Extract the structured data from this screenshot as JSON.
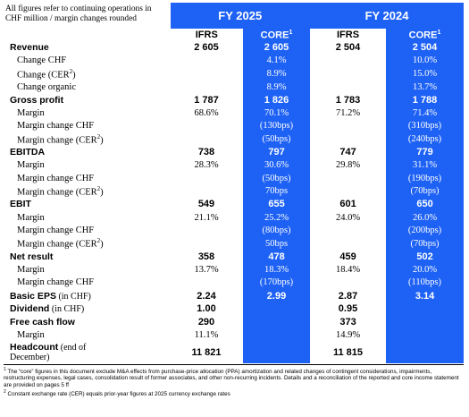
{
  "intro_note": "All figures refer to continuing operations in CHF million / margin changes rounded",
  "periods": {
    "p1": "FY 2025",
    "p2": "FY 2024"
  },
  "subheads": {
    "ifrs": "IFRS",
    "core": "CORE",
    "core_sup": "1"
  },
  "rows": [
    {
      "label": "Revenue",
      "cells": [
        "2 605",
        "2 605",
        "2 504",
        "2 504"
      ]
    },
    {
      "label": "Change CHF",
      "cells": [
        "",
        "4.1%",
        "",
        "10.0%"
      ]
    },
    {
      "label": "Change (CER",
      "sup": "2",
      "label_end": ")",
      "cells": [
        "",
        "8.9%",
        "",
        "15.0%"
      ]
    },
    {
      "label": "Change organic",
      "cells": [
        "",
        "8.9%",
        "",
        "13.7%"
      ]
    },
    {
      "label": "Gross profit",
      "cells": [
        "1 787",
        "1 826",
        "1 783",
        "1 788"
      ]
    },
    {
      "label": "Margin",
      "cells": [
        "68.6%",
        "70.1%",
        "71.2%",
        "71.4%"
      ]
    },
    {
      "label": "Margin change CHF",
      "cells": [
        "",
        "(130bps)",
        "",
        "(310bps)"
      ]
    },
    {
      "label": "Margin change (CER",
      "sup": "2",
      "label_end": ")",
      "cells": [
        "",
        "(50bps)",
        "",
        "(240bps)"
      ]
    },
    {
      "label": "EBITDA",
      "cells": [
        "738",
        "797",
        "747",
        "779"
      ]
    },
    {
      "label": "Margin",
      "cells": [
        "28.3%",
        "30.6%",
        "29.8%",
        "31.1%"
      ]
    },
    {
      "label": "Margin change CHF",
      "cells": [
        "",
        "(50bps)",
        "",
        "(190bps)"
      ]
    },
    {
      "label": "Margin change (CER",
      "sup": "2",
      "label_end": ")",
      "cells": [
        "",
        "70bps",
        "",
        "(70bps)"
      ]
    },
    {
      "label": "EBIT",
      "cells": [
        "549",
        "655",
        "601",
        "650"
      ]
    },
    {
      "label": "Margin",
      "cells": [
        "21.1%",
        "25.2%",
        "24.0%",
        "26.0%"
      ]
    },
    {
      "label": "Margin change CHF",
      "cells": [
        "",
        "(80bps)",
        "",
        "(200bps)"
      ]
    },
    {
      "label": "Margin change (CER",
      "sup": "2",
      "label_end": ")",
      "cells": [
        "",
        "50bps",
        "",
        "(70bps)"
      ]
    },
    {
      "label": "Net result",
      "cells": [
        "358",
        "478",
        "459",
        "502"
      ]
    },
    {
      "label": "Margin",
      "cells": [
        "13.7%",
        "18.3%",
        "18.4%",
        "20.0%"
      ]
    },
    {
      "label": "Margin change CHF",
      "cells": [
        "",
        "(170bps)",
        "",
        "(110bps)"
      ]
    },
    {
      "label": "Basic EPS",
      "note": " (in CHF)",
      "cells": [
        "2.24",
        "2.99",
        "2.87",
        "3.14"
      ]
    },
    {
      "label": "Dividend",
      "note": " (in CHF)",
      "cells": [
        "1.00",
        "",
        "0.95",
        ""
      ]
    },
    {
      "label": "Free cash flow",
      "cells": [
        "290",
        "",
        "373",
        ""
      ]
    },
    {
      "label": "Margin",
      "cells": [
        "11.1%",
        "",
        "14.9%",
        ""
      ]
    },
    {
      "label": "Headcount",
      "note": " (end of",
      "label_line2": "December)",
      "cells": [
        "11 821",
        "",
        "11 815",
        ""
      ]
    }
  ],
  "footnotes": {
    "f1_sup": "1",
    "f1": " The “core” figures in this document exclude M&A effects from purchase-price allocation (PPA) amortization and related changes of contingent considerations, impairments, restructuring expenses, legal cases, consolidation result of former associates, and other non-recurring incidents. Details and a reconciliation of the reported and core income statement are provided on pages 5 ff",
    "f2_sup": "2",
    "f2": " Constant exchange rate (CER) equals prior-year figures at 2025 currency exchange rates"
  }
}
